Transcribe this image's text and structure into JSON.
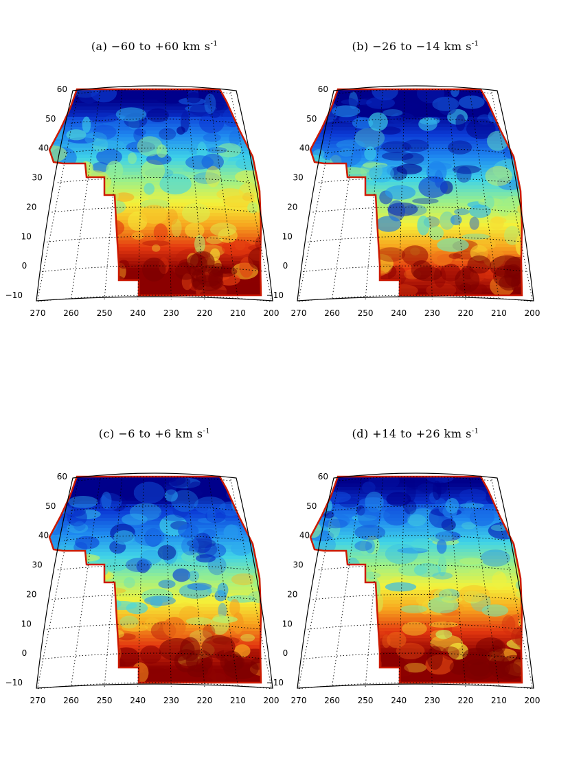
{
  "panels": [
    {
      "id": "a",
      "title": "(a) −60 to +60 km s",
      "title_sup": "-1",
      "variant": 0
    },
    {
      "id": "b",
      "title": "(b) −26 to −14 km s",
      "title_sup": "-1",
      "variant": 1
    },
    {
      "id": "c",
      "title": "(c) −6 to +6 km s",
      "title_sup": "-1",
      "variant": 2
    },
    {
      "id": "d",
      "title": "(d) +14 to +26 km s",
      "title_sup": "-1",
      "variant": 3
    }
  ],
  "axes": {
    "lat_ticks": [
      "60",
      "50",
      "40",
      "30",
      "20",
      "10",
      "0",
      "−10"
    ],
    "lon_ticks": [
      "270",
      "260",
      "250",
      "240",
      "230",
      "220",
      "210",
      "200"
    ]
  },
  "colormap": [
    "#00008b",
    "#0b3bd6",
    "#1f8af0",
    "#3fd3e8",
    "#9bf08a",
    "#f4f23a",
    "#f7a51e",
    "#e3370f",
    "#8b0000"
  ]
}
